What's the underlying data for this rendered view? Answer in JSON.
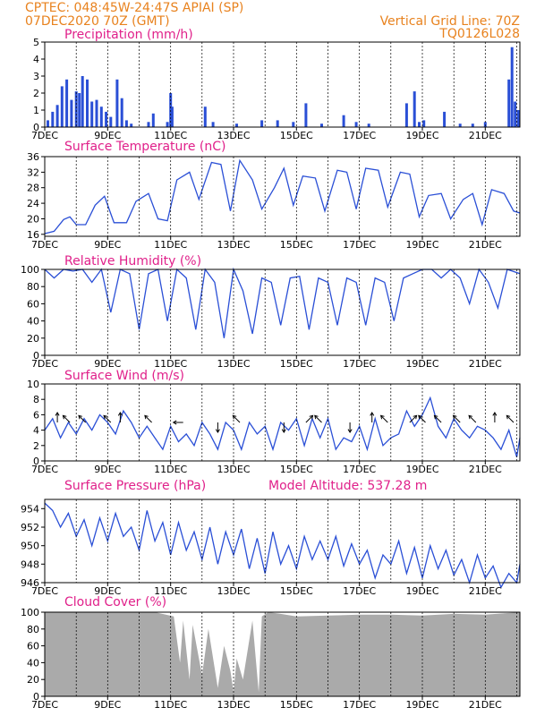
{
  "header": {
    "station": "CPTEC:   048:45W-24:47S   APIAI (SP)",
    "init": "07DEC2020 70Z (GMT)",
    "grid_note": "Vertical Grid Line: 70Z",
    "run_code": "TQ0126L028"
  },
  "colors": {
    "line": "#2a4fd6",
    "bar": "#2a4fd6",
    "cloud": "#aaaaaa",
    "title": "#e0208a",
    "header": "#e8821e"
  },
  "x_axis": {
    "tick_labels": [
      "7DEC",
      "9DEC",
      "11DEC",
      "13DEC",
      "15DEC",
      "17DEC",
      "19DEC",
      "21DEC"
    ],
    "tick_days": [
      0,
      2,
      4,
      6,
      8,
      10,
      12,
      14
    ],
    "range_days": [
      0,
      15.1
    ],
    "gridlines": "daily"
  },
  "extra_label": "Model Altitude: 537.28 m",
  "chart_data": [
    {
      "type": "bar",
      "title": "Precipitation (mm/h)",
      "ylim": [
        0,
        5
      ],
      "y_ticks": [
        0,
        1,
        2,
        3,
        4,
        5
      ],
      "x_unit": "days since 7DEC2020",
      "series": [
        {
          "x": [
            0.1,
            0.25,
            0.4,
            0.55,
            0.7,
            0.85,
            1.0,
            1.1,
            1.2,
            1.35,
            1.5,
            1.65,
            1.8,
            1.95,
            2.1,
            2.3,
            2.45,
            2.6,
            2.75,
            3.3,
            3.45,
            3.9,
            4.0,
            4.05,
            5.1,
            5.35,
            6.1,
            6.9,
            7.4,
            7.9,
            8.3,
            8.8,
            9.5,
            9.9,
            10.3,
            11.5,
            11.75,
            11.9,
            12.05,
            12.7,
            13.2,
            13.6,
            14.0,
            14.75,
            14.85,
            14.95,
            15.05
          ],
          "values": [
            0.4,
            0.9,
            1.3,
            2.4,
            2.8,
            1.6,
            2.1,
            2.0,
            3.0,
            2.8,
            1.5,
            1.6,
            1.2,
            0.9,
            0.6,
            2.8,
            1.7,
            0.4,
            0.2,
            0.3,
            0.8,
            0.3,
            2.0,
            1.2,
            1.2,
            0.3,
            0.2,
            0.4,
            0.4,
            0.3,
            1.4,
            0.2,
            0.7,
            0.3,
            0.2,
            1.4,
            2.1,
            0.3,
            0.4,
            0.9,
            0.2,
            0.2,
            0.3,
            2.8,
            4.7,
            1.5,
            1.0
          ]
        }
      ]
    },
    {
      "type": "line",
      "title": "Surface Temperature (nC)",
      "ylim": [
        15.5,
        36
      ],
      "y_ticks": [
        16,
        20,
        24,
        28,
        32,
        36
      ],
      "x_unit": "days since 7DEC2020",
      "series": [
        {
          "x": [
            0,
            0.3,
            0.6,
            0.8,
            1.0,
            1.3,
            1.6,
            1.9,
            2.2,
            2.6,
            2.9,
            3.3,
            3.6,
            3.9,
            4.2,
            4.6,
            4.9,
            5.3,
            5.6,
            5.9,
            6.2,
            6.6,
            6.9,
            7.3,
            7.6,
            7.9,
            8.2,
            8.6,
            8.9,
            9.3,
            9.6,
            9.9,
            10.2,
            10.6,
            10.9,
            11.3,
            11.6,
            11.9,
            12.2,
            12.6,
            12.9,
            13.3,
            13.6,
            13.9,
            14.2,
            14.6,
            14.9,
            15.1
          ],
          "values": [
            16.2,
            16.8,
            19.8,
            20.5,
            18.5,
            18.5,
            23.5,
            25.8,
            19.0,
            19.0,
            24.5,
            26.5,
            20.0,
            19.5,
            30.0,
            32.0,
            25.0,
            34.5,
            34.0,
            22.0,
            35.0,
            30.0,
            22.5,
            28.0,
            33.0,
            23.5,
            31.0,
            30.5,
            22.0,
            32.5,
            32.0,
            22.5,
            33.0,
            32.5,
            23.0,
            32.0,
            31.5,
            20.5,
            26.0,
            26.5,
            20.0,
            25.0,
            26.5,
            18.5,
            27.5,
            26.5,
            22.0,
            21.5
          ]
        }
      ]
    },
    {
      "type": "line",
      "title": "Relative Humidity (%)",
      "ylim": [
        0,
        100
      ],
      "y_ticks": [
        0,
        20,
        40,
        60,
        80,
        100
      ],
      "x_unit": "days since 7DEC2020",
      "series": [
        {
          "x": [
            0,
            0.3,
            0.6,
            0.9,
            1.2,
            1.5,
            1.8,
            2.1,
            2.4,
            2.7,
            3.0,
            3.3,
            3.6,
            3.9,
            4.2,
            4.5,
            4.8,
            5.1,
            5.4,
            5.7,
            6.0,
            6.3,
            6.6,
            6.9,
            7.2,
            7.5,
            7.8,
            8.1,
            8.4,
            8.7,
            9.0,
            9.3,
            9.6,
            9.9,
            10.2,
            10.5,
            10.8,
            11.1,
            11.4,
            11.7,
            12.0,
            12.3,
            12.6,
            12.9,
            13.2,
            13.5,
            13.8,
            14.1,
            14.4,
            14.7,
            15.1
          ],
          "values": [
            100,
            90,
            100,
            98,
            100,
            85,
            100,
            50,
            100,
            95,
            30,
            95,
            100,
            40,
            100,
            90,
            30,
            100,
            85,
            20,
            100,
            75,
            25,
            90,
            85,
            35,
            90,
            92,
            30,
            90,
            85,
            35,
            90,
            85,
            35,
            90,
            85,
            40,
            90,
            95,
            100,
            100,
            90,
            100,
            90,
            60,
            100,
            85,
            55,
            100,
            95
          ]
        }
      ]
    },
    {
      "type": "line",
      "title": "Surface Wind (m/s)",
      "ylim": [
        0,
        10
      ],
      "y_ticks": [
        0,
        2,
        4,
        6,
        8,
        10
      ],
      "x_unit": "days since 7DEC2020",
      "series": [
        {
          "x": [
            0,
            0.25,
            0.5,
            0.75,
            1.0,
            1.25,
            1.5,
            1.75,
            2.0,
            2.25,
            2.5,
            2.75,
            3.0,
            3.25,
            3.5,
            3.75,
            4.0,
            4.25,
            4.5,
            4.75,
            5.0,
            5.25,
            5.5,
            5.75,
            6.0,
            6.25,
            6.5,
            6.75,
            7.0,
            7.25,
            7.5,
            7.75,
            8.0,
            8.25,
            8.5,
            8.75,
            9.0,
            9.25,
            9.5,
            9.75,
            10.0,
            10.25,
            10.5,
            10.75,
            11.0,
            11.25,
            11.5,
            11.75,
            12.0,
            12.25,
            12.5,
            12.75,
            13.0,
            13.25,
            13.5,
            13.75,
            14.0,
            14.25,
            14.5,
            14.75,
            15.0,
            15.1
          ],
          "values": [
            4.0,
            5.5,
            3.0,
            5.0,
            3.5,
            5.5,
            4.0,
            6.0,
            5.0,
            3.5,
            6.5,
            5.0,
            3.0,
            4.5,
            3.0,
            1.5,
            4.5,
            2.5,
            3.5,
            2.0,
            5.0,
            3.5,
            1.5,
            5.0,
            4.0,
            1.5,
            5.0,
            3.5,
            4.5,
            1.5,
            5.0,
            4.0,
            5.5,
            2.0,
            5.5,
            3.0,
            5.5,
            1.5,
            3.0,
            2.5,
            4.5,
            1.5,
            5.5,
            2.0,
            3.0,
            3.5,
            6.5,
            4.5,
            6.0,
            8.2,
            4.5,
            3.0,
            5.5,
            4.0,
            3.0,
            4.5,
            4.0,
            3.0,
            1.5,
            4.0,
            0.5,
            3.0
          ]
        }
      ],
      "arrows": [
        {
          "day": 0.4,
          "dir": "n"
        },
        {
          "day": 0.8,
          "dir": "nw"
        },
        {
          "day": 1.3,
          "dir": "nw"
        },
        {
          "day": 2.1,
          "dir": "nw"
        },
        {
          "day": 2.4,
          "dir": "n"
        },
        {
          "day": 3.4,
          "dir": "nw"
        },
        {
          "day": 4.4,
          "dir": "w"
        },
        {
          "day": 5.5,
          "dir": "s"
        },
        {
          "day": 6.2,
          "dir": "nw"
        },
        {
          "day": 7.6,
          "dir": "s"
        },
        {
          "day": 8.3,
          "dir": "ne"
        },
        {
          "day": 8.8,
          "dir": "nw"
        },
        {
          "day": 9.7,
          "dir": "s"
        },
        {
          "day": 10.4,
          "dir": "n"
        },
        {
          "day": 10.9,
          "dir": "nw"
        },
        {
          "day": 11.6,
          "dir": "ne"
        },
        {
          "day": 12.1,
          "dir": "nw"
        },
        {
          "day": 12.6,
          "dir": "nw"
        },
        {
          "day": 13.2,
          "dir": "nw"
        },
        {
          "day": 13.7,
          "dir": "nw"
        },
        {
          "day": 14.3,
          "dir": "n"
        },
        {
          "day": 14.9,
          "dir": "nw"
        }
      ]
    },
    {
      "type": "line",
      "title": "Surface Pressure (hPa)",
      "ylim": [
        946,
        955
      ],
      "y_ticks": [
        946,
        948,
        950,
        952,
        954
      ],
      "x_unit": "days since 7DEC2020",
      "series": [
        {
          "x": [
            0,
            0.25,
            0.5,
            0.75,
            1.0,
            1.25,
            1.5,
            1.75,
            2.0,
            2.25,
            2.5,
            2.75,
            3.0,
            3.25,
            3.5,
            3.75,
            4.0,
            4.25,
            4.5,
            4.75,
            5.0,
            5.25,
            5.5,
            5.75,
            6.0,
            6.25,
            6.5,
            6.75,
            7.0,
            7.25,
            7.5,
            7.75,
            8.0,
            8.25,
            8.5,
            8.75,
            9.0,
            9.25,
            9.5,
            9.75,
            10.0,
            10.25,
            10.5,
            10.75,
            11.0,
            11.25,
            11.5,
            11.75,
            12.0,
            12.25,
            12.5,
            12.75,
            13.0,
            13.25,
            13.5,
            13.75,
            14.0,
            14.25,
            14.5,
            14.75,
            15.0,
            15.1
          ],
          "values": [
            954.6,
            953.8,
            952.0,
            953.5,
            951.0,
            952.8,
            950.0,
            953.0,
            950.5,
            953.5,
            951.0,
            952.0,
            949.5,
            953.8,
            950.5,
            952.5,
            949.0,
            952.5,
            949.5,
            951.5,
            948.5,
            952.0,
            948.0,
            951.5,
            949.0,
            951.8,
            947.5,
            950.8,
            947.0,
            951.5,
            948.0,
            950.0,
            947.5,
            951.0,
            948.5,
            950.5,
            948.5,
            951.0,
            947.8,
            950.2,
            948.0,
            949.5,
            946.5,
            949.0,
            948.0,
            950.5,
            947.0,
            949.8,
            946.5,
            950.0,
            947.5,
            949.5,
            946.8,
            948.5,
            946.0,
            949.0,
            946.5,
            947.8,
            945.5,
            947.0,
            946.0,
            948.0
          ]
        }
      ]
    },
    {
      "type": "area",
      "title": "Cloud Cover (%)",
      "ylim": [
        0,
        100
      ],
      "y_ticks": [
        0,
        20,
        40,
        60,
        80,
        100
      ],
      "x_unit": "days since 7DEC2020",
      "series": [
        {
          "x": [
            0,
            2.0,
            3.5,
            4.1,
            4.3,
            4.4,
            4.6,
            4.7,
            5.0,
            5.2,
            5.5,
            5.7,
            5.9,
            6.0,
            6.1,
            6.3,
            6.6,
            6.8,
            6.9,
            7.1,
            7.5,
            8.0,
            9.0,
            10.0,
            11.0,
            12.0,
            13.0,
            14.0,
            15.1
          ],
          "values": [
            100,
            100,
            100,
            95,
            40,
            90,
            20,
            85,
            25,
            80,
            10,
            60,
            30,
            5,
            45,
            20,
            90,
            5,
            95,
            100,
            98,
            95,
            96,
            97,
            97,
            96,
            98,
            97,
            100
          ]
        }
      ]
    }
  ]
}
